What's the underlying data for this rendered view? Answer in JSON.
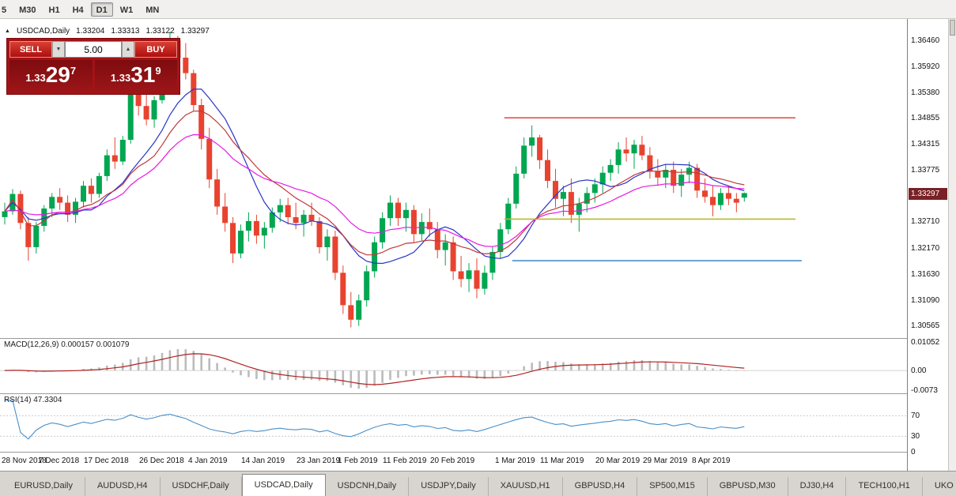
{
  "toolbar": {
    "timeframes": [
      {
        "label": "5",
        "active": false
      },
      {
        "label": "M30",
        "active": false
      },
      {
        "label": "H1",
        "active": false
      },
      {
        "label": "H4",
        "active": false
      },
      {
        "label": "D1",
        "active": true
      },
      {
        "label": "W1",
        "active": false
      },
      {
        "label": "MN",
        "active": false
      }
    ]
  },
  "chart": {
    "header": {
      "arrow": "▲",
      "title": "USDCAD,Daily",
      "open": "1.33204",
      "high": "1.33313",
      "low": "1.33122",
      "close": "1.33297"
    },
    "trade_panel": {
      "sell_label": "SELL",
      "buy_label": "BUY",
      "volume": "5.00",
      "decrease_glyph": "▼",
      "increase_glyph": "▲",
      "sell_price": {
        "base": "1.33",
        "big": "29",
        "pip": "7"
      },
      "buy_price": {
        "base": "1.33",
        "big": "31",
        "pip": "9"
      }
    },
    "current_price_label": "1.33297"
  },
  "chart_data": {
    "type": "candlestick",
    "symbol": "USDCAD",
    "period": "Daily",
    "price_range": [
      1.303,
      1.369
    ],
    "price_axis_ticks": [
      "1.36460",
      "1.35920",
      "1.35380",
      "1.34855",
      "1.34315",
      "1.33775",
      "1.32710",
      "1.32170",
      "1.31630",
      "1.31090",
      "1.30565"
    ],
    "current_price": 1.33297,
    "candles": [
      [
        1.328,
        1.331,
        1.3265,
        1.3292
      ],
      [
        1.3292,
        1.3338,
        1.3285,
        1.3328
      ],
      [
        1.3328,
        1.3335,
        1.3255,
        1.3268
      ],
      [
        1.3268,
        1.328,
        1.319,
        1.3218
      ],
      [
        1.3218,
        1.327,
        1.3205,
        1.3262
      ],
      [
        1.3262,
        1.3305,
        1.325,
        1.3298
      ],
      [
        1.3298,
        1.333,
        1.328,
        1.3322
      ],
      [
        1.3322,
        1.334,
        1.3295,
        1.331
      ],
      [
        1.331,
        1.3325,
        1.327,
        1.3285
      ],
      [
        1.3285,
        1.332,
        1.3268,
        1.3312
      ],
      [
        1.3312,
        1.3355,
        1.33,
        1.3345
      ],
      [
        1.3345,
        1.336,
        1.331,
        1.3328
      ],
      [
        1.3328,
        1.3372,
        1.332,
        1.3365
      ],
      [
        1.3365,
        1.342,
        1.3355,
        1.3408
      ],
      [
        1.3408,
        1.3445,
        1.338,
        1.3395
      ],
      [
        1.3395,
        1.3448,
        1.3388,
        1.344
      ],
      [
        1.344,
        1.356,
        1.3432,
        1.3548
      ],
      [
        1.3548,
        1.357,
        1.349,
        1.351
      ],
      [
        1.351,
        1.3545,
        1.347,
        1.3482
      ],
      [
        1.3482,
        1.353,
        1.3465,
        1.3522
      ],
      [
        1.3522,
        1.361,
        1.3515,
        1.36
      ],
      [
        1.36,
        1.3664,
        1.358,
        1.3645
      ],
      [
        1.3645,
        1.3655,
        1.359,
        1.361
      ],
      [
        1.361,
        1.364,
        1.3565,
        1.3578
      ],
      [
        1.3578,
        1.3585,
        1.35,
        1.3512
      ],
      [
        1.3512,
        1.3525,
        1.342,
        1.3442
      ],
      [
        1.3442,
        1.3465,
        1.334,
        1.3358
      ],
      [
        1.3358,
        1.338,
        1.3285,
        1.3302
      ],
      [
        1.3302,
        1.333,
        1.325,
        1.3268
      ],
      [
        1.3268,
        1.328,
        1.3185,
        1.3205
      ],
      [
        1.3205,
        1.3265,
        1.3195,
        1.3252
      ],
      [
        1.3252,
        1.329,
        1.323,
        1.3272
      ],
      [
        1.3272,
        1.3285,
        1.3225,
        1.3242
      ],
      [
        1.3242,
        1.327,
        1.3215,
        1.3258
      ],
      [
        1.3258,
        1.33,
        1.3248,
        1.329
      ],
      [
        1.329,
        1.3318,
        1.327,
        1.3305
      ],
      [
        1.3305,
        1.332,
        1.3265,
        1.328
      ],
      [
        1.328,
        1.331,
        1.3255,
        1.3268
      ],
      [
        1.3268,
        1.3295,
        1.324,
        1.3285
      ],
      [
        1.3285,
        1.331,
        1.3262,
        1.3272
      ],
      [
        1.3272,
        1.328,
        1.3205,
        1.3218
      ],
      [
        1.3218,
        1.3255,
        1.319,
        1.324
      ],
      [
        1.324,
        1.3252,
        1.315,
        1.3165
      ],
      [
        1.3165,
        1.318,
        1.308,
        1.3098
      ],
      [
        1.3098,
        1.3125,
        1.3052,
        1.3068
      ],
      [
        1.3068,
        1.312,
        1.3055,
        1.3108
      ],
      [
        1.3108,
        1.318,
        1.3095,
        1.3168
      ],
      [
        1.3168,
        1.324,
        1.3155,
        1.3228
      ],
      [
        1.3228,
        1.329,
        1.3215,
        1.3278
      ],
      [
        1.3278,
        1.3325,
        1.3262,
        1.331
      ],
      [
        1.331,
        1.332,
        1.3262,
        1.3278
      ],
      [
        1.3278,
        1.331,
        1.325,
        1.3295
      ],
      [
        1.3295,
        1.3305,
        1.3228,
        1.3245
      ],
      [
        1.3245,
        1.3288,
        1.3232,
        1.327
      ],
      [
        1.327,
        1.3298,
        1.324,
        1.3255
      ],
      [
        1.3255,
        1.327,
        1.3195,
        1.3212
      ],
      [
        1.3212,
        1.3245,
        1.318,
        1.3228
      ],
      [
        1.3228,
        1.324,
        1.315,
        1.3168
      ],
      [
        1.3168,
        1.32,
        1.3135,
        1.3152
      ],
      [
        1.3152,
        1.3185,
        1.3125,
        1.317
      ],
      [
        1.317,
        1.3195,
        1.3112,
        1.3132
      ],
      [
        1.3132,
        1.318,
        1.312,
        1.3165
      ],
      [
        1.3165,
        1.322,
        1.315,
        1.3208
      ],
      [
        1.3208,
        1.3268,
        1.3195,
        1.3255
      ],
      [
        1.3255,
        1.332,
        1.3245,
        1.3308
      ],
      [
        1.3308,
        1.3385,
        1.3298,
        1.337
      ],
      [
        1.337,
        1.3445,
        1.336,
        1.3428
      ],
      [
        1.3428,
        1.347,
        1.3405,
        1.3445
      ],
      [
        1.3445,
        1.345,
        1.338,
        1.3398
      ],
      [
        1.3398,
        1.342,
        1.334,
        1.3355
      ],
      [
        1.3355,
        1.338,
        1.33,
        1.3318
      ],
      [
        1.3318,
        1.3345,
        1.3282,
        1.3332
      ],
      [
        1.3332,
        1.336,
        1.3268,
        1.3285
      ],
      [
        1.3285,
        1.332,
        1.325,
        1.3308
      ],
      [
        1.3308,
        1.3342,
        1.329,
        1.333
      ],
      [
        1.333,
        1.336,
        1.331,
        1.3348
      ],
      [
        1.3348,
        1.3385,
        1.333,
        1.3372
      ],
      [
        1.3372,
        1.34,
        1.3355,
        1.3388
      ],
      [
        1.3388,
        1.3435,
        1.337,
        1.342
      ],
      [
        1.342,
        1.3445,
        1.3395,
        1.3412
      ],
      [
        1.3412,
        1.344,
        1.338,
        1.343
      ],
      [
        1.343,
        1.3448,
        1.3398,
        1.3408
      ],
      [
        1.3408,
        1.3425,
        1.336,
        1.3375
      ],
      [
        1.3375,
        1.34,
        1.3345,
        1.3362
      ],
      [
        1.3362,
        1.339,
        1.334,
        1.3378
      ],
      [
        1.3378,
        1.3395,
        1.333,
        1.3345
      ],
      [
        1.3345,
        1.338,
        1.3322,
        1.3368
      ],
      [
        1.3368,
        1.3395,
        1.335,
        1.3382
      ],
      [
        1.3382,
        1.339,
        1.332,
        1.3335
      ],
      [
        1.3335,
        1.336,
        1.331,
        1.3322
      ],
      [
        1.3322,
        1.3345,
        1.3282,
        1.3305
      ],
      [
        1.3305,
        1.334,
        1.3295,
        1.333
      ],
      [
        1.333,
        1.3345,
        1.3305,
        1.3318
      ],
      [
        1.3318,
        1.333,
        1.329,
        1.331
      ],
      [
        1.33204,
        1.33313,
        1.33122,
        1.33297
      ]
    ],
    "date_ticks": [
      {
        "i": 0,
        "label": "28 Nov 2018"
      },
      {
        "i": 7,
        "label": "7 Dec 2018"
      },
      {
        "i": 13,
        "label": "17 Dec 2018"
      },
      {
        "i": 20,
        "label": "26 Dec 2018"
      },
      {
        "i": 26,
        "label": "4 Jan 2019"
      },
      {
        "i": 33,
        "label": "14 Jan 2019"
      },
      {
        "i": 40,
        "label": "23 Jan 2019"
      },
      {
        "i": 45,
        "label": "1 Feb 2019"
      },
      {
        "i": 51,
        "label": "11 Feb 2019"
      },
      {
        "i": 57,
        "label": "20 Feb 2019"
      },
      {
        "i": 65,
        "label": "1 Mar 2019"
      },
      {
        "i": 71,
        "label": "11 Mar 2019"
      },
      {
        "i": 78,
        "label": "20 Mar 2019"
      },
      {
        "i": 84,
        "label": "29 Mar 2019"
      },
      {
        "i": 90,
        "label": "8 Apr 2019"
      }
    ],
    "moving_averages": [
      {
        "type": "sma",
        "period": 10,
        "color": "#2a35c8"
      },
      {
        "type": "lwma",
        "period": 20,
        "color": "#c03838"
      },
      {
        "type": "ema",
        "period": 24,
        "color": "#e61ae6"
      }
    ],
    "hlines": [
      {
        "price": 1.34855,
        "color": "#e0564e",
        "from": 63.5,
        "to": 100.5
      },
      {
        "price": 1.3276,
        "color": "#b8ba28",
        "from": 63.5,
        "to": 100.5
      },
      {
        "price": 1.319,
        "color": "#4a90c8",
        "from": 64.5,
        "to": 101.3
      }
    ],
    "colors": {
      "bull": "#00a650",
      "bear": "#e8432f",
      "hist": "#bbbbbb",
      "signal": "#b22222",
      "rsi": "#4a8fc7"
    },
    "macd": {
      "label": "MACD(12,26,9) 0.000157 0.001079",
      "fast": 12,
      "slow": 26,
      "signal": 9,
      "range": [
        -0.0085,
        0.0118
      ],
      "axis_labels": [
        "0.01052",
        "0.00",
        "-0.0073"
      ]
    },
    "rsi": {
      "label": "RSI(14) 47.3304",
      "period": 14,
      "range": [
        0,
        112
      ],
      "axis_labels": [
        "70",
        "30",
        "0"
      ],
      "levels": [
        70,
        30
      ]
    }
  },
  "tabs": [
    {
      "label": "EURUSD,Daily",
      "active": false
    },
    {
      "label": "AUDUSD,H4",
      "active": false
    },
    {
      "label": "USDCHF,Daily",
      "active": false
    },
    {
      "label": "USDCAD,Daily",
      "active": true
    },
    {
      "label": "USDCNH,Daily",
      "active": false
    },
    {
      "label": "USDJPY,Daily",
      "active": false
    },
    {
      "label": "XAUUSD,H1",
      "active": false
    },
    {
      "label": "GBPUSD,H4",
      "active": false
    },
    {
      "label": "SP500,M15",
      "active": false
    },
    {
      "label": "GBPUSD,M30",
      "active": false
    },
    {
      "label": "DJ30,H4",
      "active": false
    },
    {
      "label": "TECH100,H1",
      "active": false
    },
    {
      "label": "UKO",
      "active": false
    }
  ]
}
